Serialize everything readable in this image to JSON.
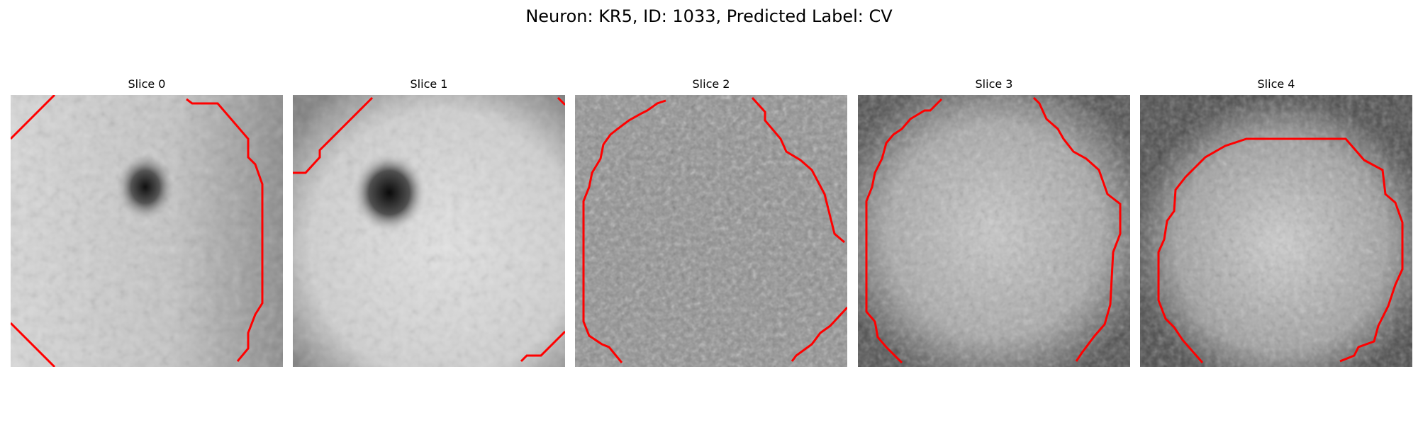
{
  "figure": {
    "title": "Neuron: KR5, ID: 1033, Predicted Label: CV",
    "contour_color": "#ff0000",
    "colormap": "grayscale"
  },
  "slices": [
    {
      "label": "Slice 0",
      "pattern": "bright-with-dark-blob"
    },
    {
      "label": "Slice 1",
      "pattern": "bright-with-dark-blob"
    },
    {
      "label": "Slice 2",
      "pattern": "noisy-mid-gray"
    },
    {
      "label": "Slice 3",
      "pattern": "bright-center-dark-rim"
    },
    {
      "label": "Slice 4",
      "pattern": "bright-center-dark-rim"
    }
  ]
}
